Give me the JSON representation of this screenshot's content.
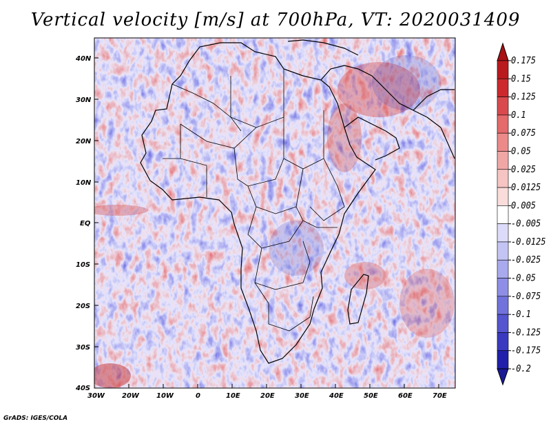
{
  "title": "Vertical velocity [m/s] at 700hPa, VT: 2020031409",
  "map": {
    "region": "Africa",
    "lat_labels": [
      "40N",
      "30N",
      "20N",
      "10N",
      "EQ",
      "10S",
      "20S",
      "30S",
      "40S"
    ],
    "lon_labels": [
      "30W",
      "20W",
      "10W",
      "0",
      "10E",
      "20E",
      "30E",
      "40E",
      "50E",
      "60E",
      "70E"
    ]
  },
  "colorbar": {
    "levels": [
      "0.175",
      "0.15",
      "0.125",
      "0.1",
      "0.075",
      "0.05",
      "0.025",
      "0.0125",
      "0.005",
      "-0.005",
      "-0.0125",
      "-0.025",
      "-0.05",
      "-0.075",
      "-0.1",
      "-0.125",
      "-0.175",
      "-0.2"
    ],
    "colors": [
      "#b91a1e",
      "#cc2a2e",
      "#d94a4e",
      "#e46a6c",
      "#ec8a8a",
      "#f1a6a6",
      "#f6c4c3",
      "#fadcdb",
      "#ffffff",
      "#dcdcfa",
      "#c4c4f4",
      "#a9a9ee",
      "#8e8ee6",
      "#7272dc",
      "#5555cf",
      "#3a3ac0",
      "#2020aa"
    ],
    "end_colors": {
      "top": "#a81014",
      "bottom": "#1a1a96"
    }
  },
  "credit": "GrADS: IGES/COLA"
}
